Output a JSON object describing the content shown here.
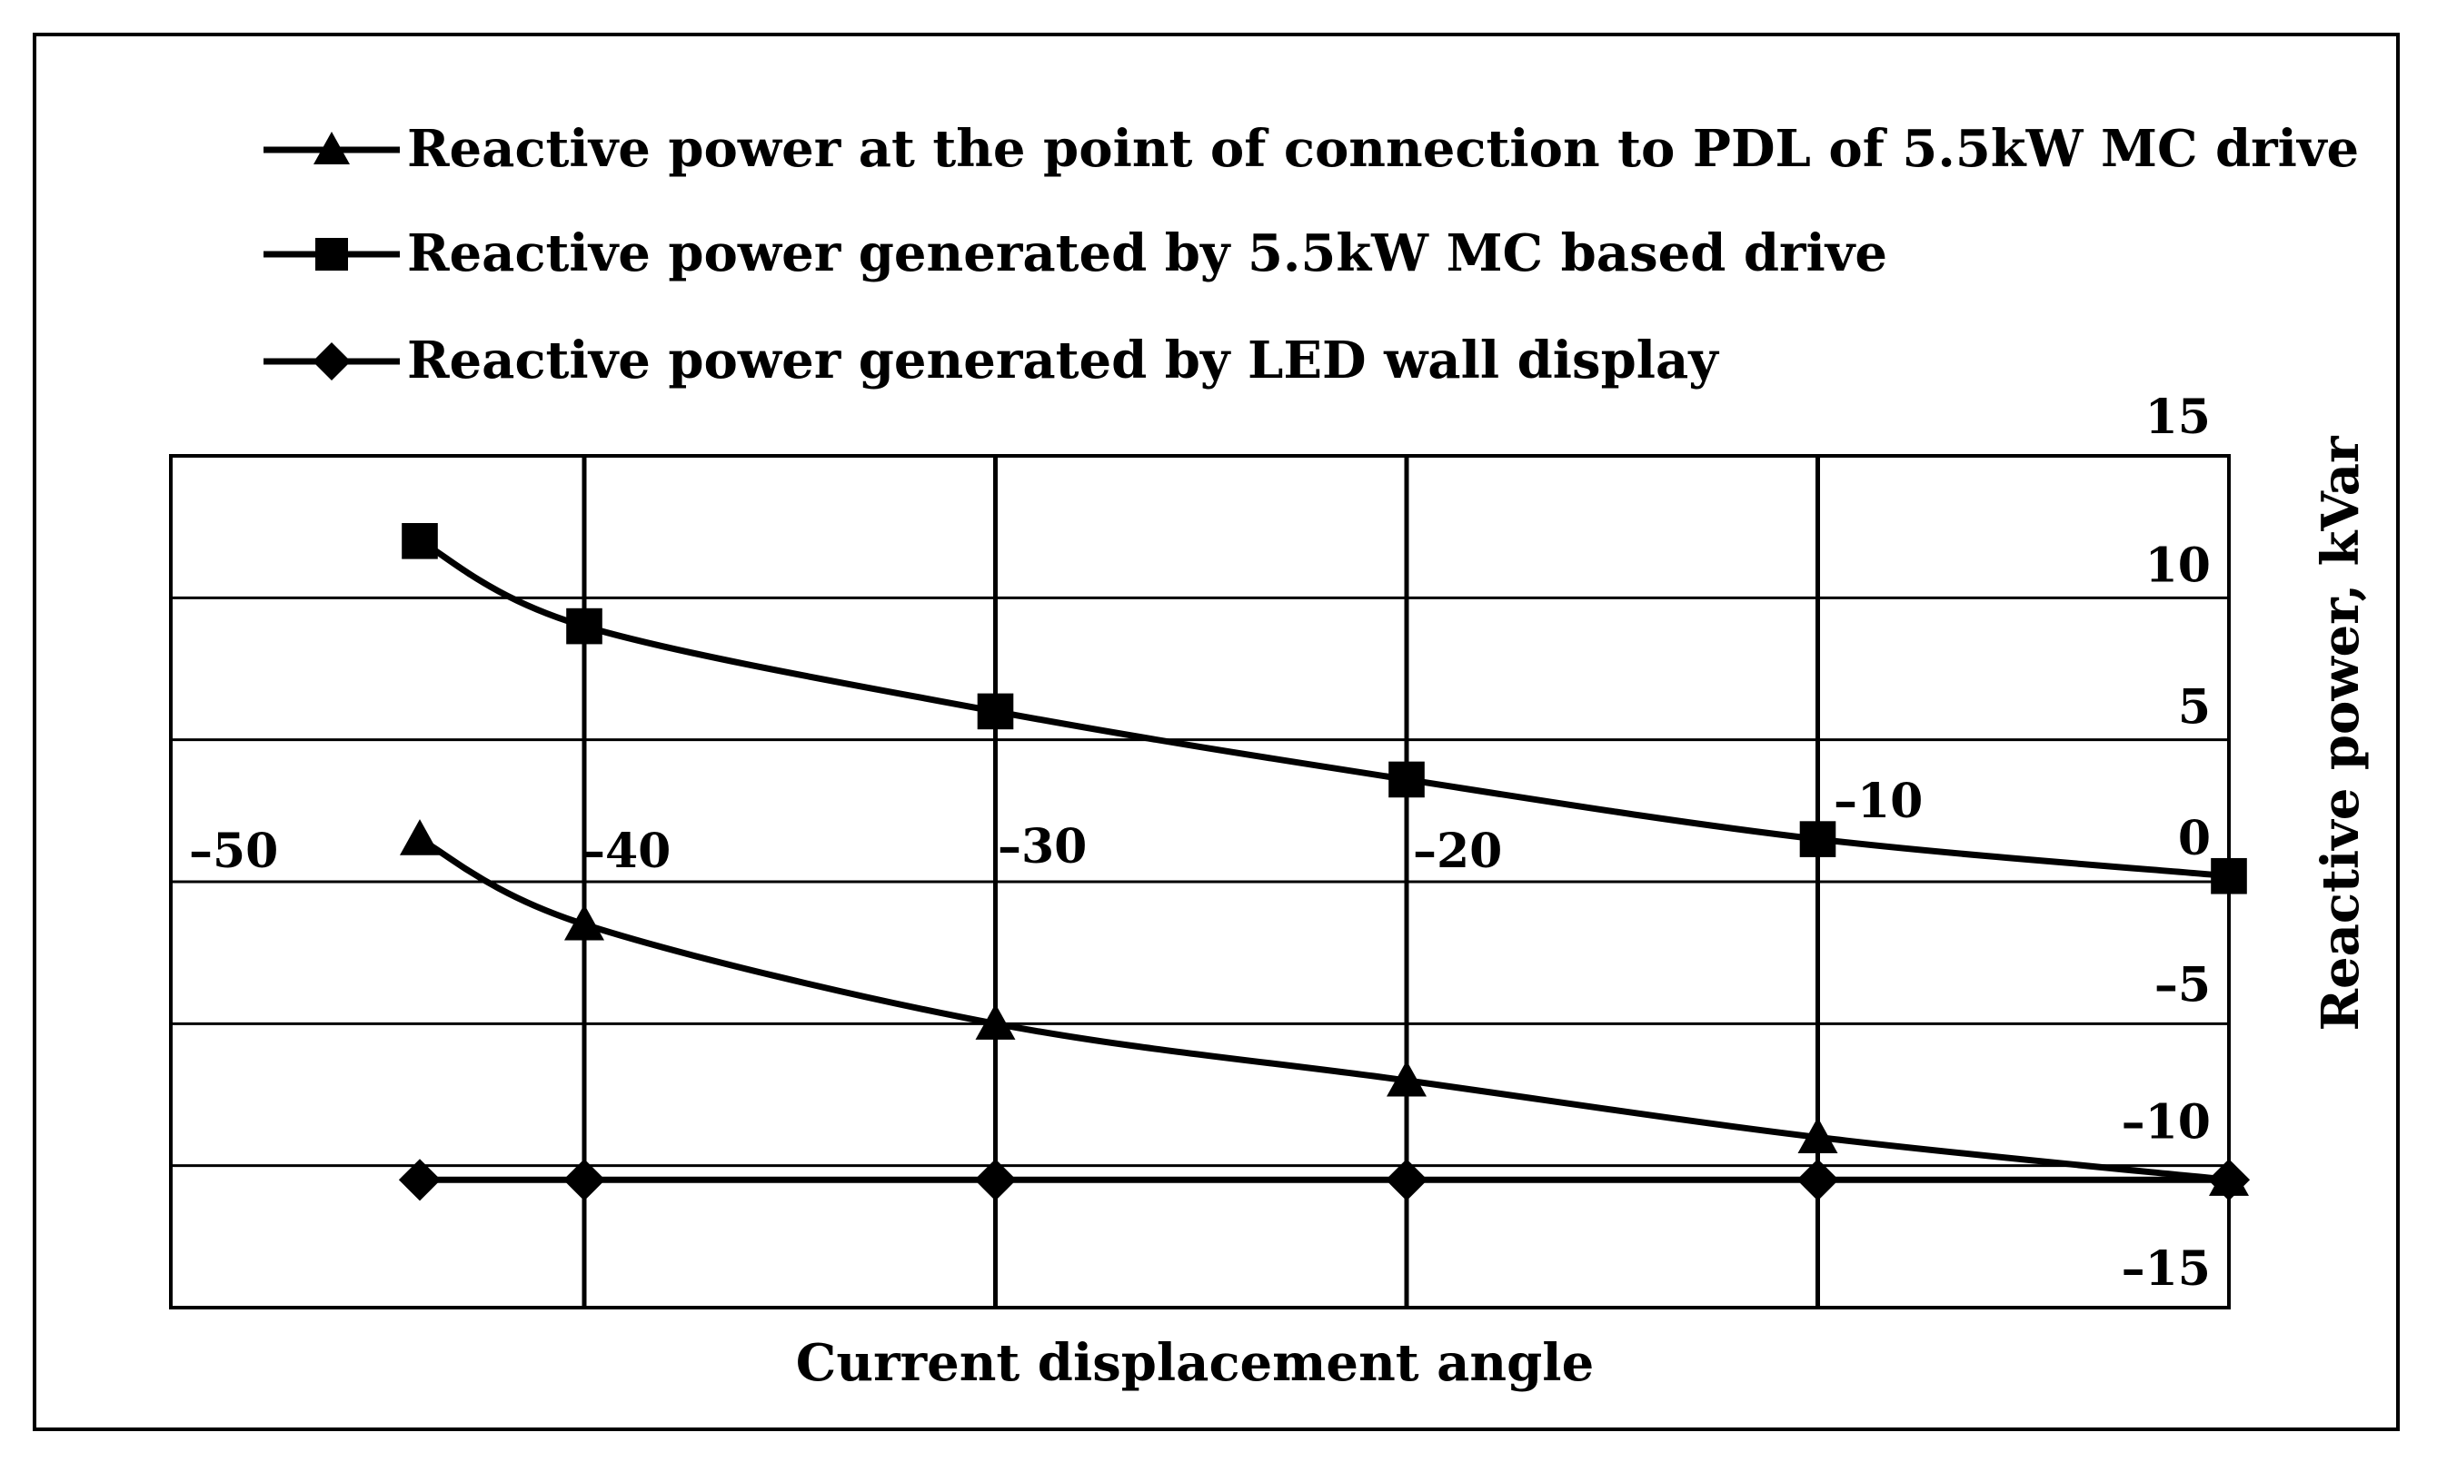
{
  "chart_data": {
    "type": "line",
    "xlabel": "Current displacement angle",
    "ylabel": "Reactive power, kVar",
    "xlim": [
      -50,
      0
    ],
    "ylim": [
      -15,
      15
    ],
    "x_ticks": [
      "–50",
      "–40",
      "–30",
      "–20",
      "–10"
    ],
    "y_ticks": [
      "15",
      "10",
      "5",
      "0",
      "–5",
      "–10",
      "–15"
    ],
    "grid": true,
    "legend_position": "top",
    "series": [
      {
        "name": "Reactive power at the point of connection to PDL of 5.5kW MC drive",
        "marker": "triangle",
        "x": [
          -44,
          -40,
          -30,
          -20,
          -10,
          0
        ],
        "y": [
          1.5,
          -1.5,
          -5.0,
          -7.0,
          -9.0,
          -10.5
        ]
      },
      {
        "name": "Reactive power generated by 5.5kW MC based drive",
        "marker": "square",
        "x": [
          -44,
          -40,
          -30,
          -20,
          -10,
          0
        ],
        "y": [
          12.0,
          9.0,
          6.0,
          3.6,
          1.5,
          0.2
        ]
      },
      {
        "name": "Reactive power generated by LED wall display",
        "marker": "diamond",
        "x": [
          -44,
          -40,
          -30,
          -20,
          -10,
          0
        ],
        "y": [
          -10.5,
          -10.5,
          -10.5,
          -10.5,
          -10.5,
          -10.5
        ]
      }
    ]
  }
}
